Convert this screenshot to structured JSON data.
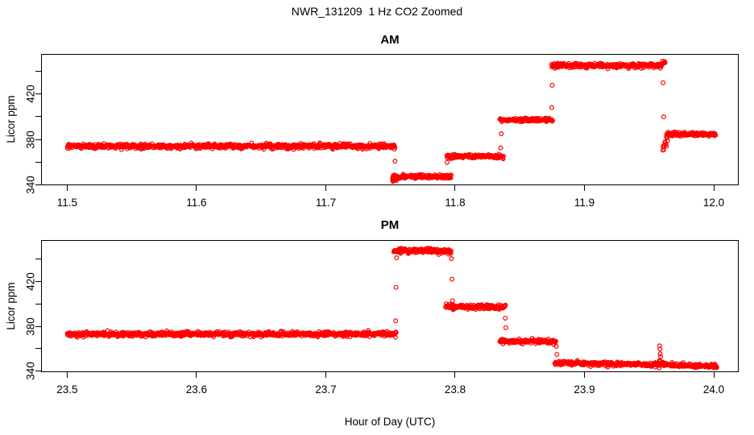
{
  "figure": {
    "title": "NWR_131209  1 Hz CO2 Zoomed",
    "xlabel": "Hour of Day (UTC)",
    "background": "#ffffff",
    "point_color": "#ff0000",
    "axis_color": "#000000",
    "marker": "open-circle"
  },
  "chart_data": [
    {
      "type": "scatter",
      "title": "AM",
      "ylabel": "Licor ppm",
      "sample_rate_hz": 1,
      "marker": "open-circle",
      "color": "#ff0000",
      "xlim": [
        11.4798,
        12.0193
      ],
      "ylim": [
        339.3,
        455.7
      ],
      "x_ticks": {
        "values": [
          11.5,
          11.6,
          11.7,
          11.8,
          11.9,
          12.0
        ],
        "labels": [
          "11.5",
          "11.6",
          "11.7",
          "11.8",
          "11.9",
          "12.0"
        ]
      },
      "y_ticks": {
        "values": [
          340,
          360,
          380,
          400,
          420,
          440
        ],
        "labels": [
          "340",
          "",
          "380",
          "",
          "420",
          ""
        ]
      },
      "segments": [
        {
          "t": [
            11.5,
            11.7535
          ],
          "v": [
            374.0,
            374.0
          ],
          "sd": 1.0
        },
        {
          "t": [
            11.7515,
            11.7555
          ],
          "v": [
            343.5,
            345.5
          ],
          "sd": 1.2
        },
        {
          "t": [
            11.7515,
            11.797
          ],
          "v": [
            347.0,
            347.0
          ],
          "sd": 0.9
        },
        {
          "t": [
            11.7935,
            11.8375
          ],
          "v": [
            365.0,
            365.0
          ],
          "sd": 0.9
        },
        {
          "t": [
            11.8345,
            11.8755
          ],
          "v": [
            397.3,
            397.3
          ],
          "sd": 0.9
        },
        {
          "t": [
            11.8745,
            11.9595
          ],
          "v": [
            445.5,
            445.5
          ],
          "sd": 1.0
        },
        {
          "t": [
            11.959,
            11.9625
          ],
          "v": [
            446.5,
            449.0
          ],
          "sd": 0.9
        },
        {
          "t": [
            11.9605,
            11.9645
          ],
          "v": [
            372.0,
            381.0
          ],
          "sd": 2.4
        },
        {
          "t": [
            11.9635,
            12.0015
          ],
          "v": [
            384.5,
            384.5
          ],
          "sd": 0.9
        }
      ],
      "outlier_points": [
        [
          11.753,
          371.4
        ],
        [
          11.7535,
          360.7
        ],
        [
          11.7938,
          359.5
        ],
        [
          11.8352,
          372.4
        ],
        [
          11.8357,
          385.0
        ],
        [
          11.8747,
          408.2
        ],
        [
          11.875,
          427.9
        ],
        [
          11.918,
          442.6
        ],
        [
          11.9608,
          430.2
        ],
        [
          11.9613,
          400.0
        ]
      ]
    },
    {
      "type": "scatter",
      "title": "PM",
      "ylabel": "Licor ppm",
      "sample_rate_hz": 1,
      "marker": "open-circle",
      "color": "#ff0000",
      "xlim": [
        23.4798,
        24.0193
      ],
      "ylim": [
        338.9,
        457.3
      ],
      "x_ticks": {
        "values": [
          23.5,
          23.6,
          23.7,
          23.8,
          23.9,
          24.0
        ],
        "labels": [
          "23.5",
          "23.6",
          "23.7",
          "23.8",
          "23.9",
          "24.0"
        ]
      },
      "y_ticks": {
        "values": [
          340,
          360,
          380,
          400,
          420,
          440
        ],
        "labels": [
          "340",
          "",
          "380",
          "",
          "420",
          ""
        ]
      },
      "segments": [
        {
          "t": [
            23.5,
            23.7545
          ],
          "v": [
            373.0,
            373.0
          ],
          "sd": 1.0
        },
        {
          "t": [
            23.7525,
            23.797
          ],
          "v": [
            447.5,
            447.5
          ],
          "sd": 1.1
        },
        {
          "t": [
            23.7925,
            23.839
          ],
          "v": [
            397.5,
            397.5
          ],
          "sd": 1.0
        },
        {
          "t": [
            23.8345,
            23.878
          ],
          "v": [
            366.5,
            366.5
          ],
          "sd": 0.9
        },
        {
          "t": [
            23.877,
            23.958
          ],
          "v": [
            347.0,
            346.0
          ],
          "sd": 0.9
        },
        {
          "t": [
            23.958,
            23.9605
          ],
          "v": [
            348.5,
            346.5
          ],
          "sd": 1.5
        },
        {
          "t": [
            23.96,
            24.0025
          ],
          "v": [
            345.5,
            344.3
          ],
          "sd": 0.9
        }
      ],
      "outlier_points": [
        [
          23.754,
          384.9
        ],
        [
          23.7543,
          414.9
        ],
        [
          23.7547,
          441.4
        ],
        [
          23.7972,
          440.7
        ],
        [
          23.7976,
          422.2
        ],
        [
          23.798,
          403.0
        ],
        [
          23.8388,
          387.3
        ],
        [
          23.8392,
          378.8
        ],
        [
          23.8783,
          362.0
        ],
        [
          23.8787,
          354.8
        ],
        [
          23.918,
          343.5
        ],
        [
          23.9578,
          342.7
        ],
        [
          23.9581,
          362.5
        ],
        [
          23.9584,
          359.6
        ],
        [
          23.9586,
          355.3
        ],
        [
          23.9589,
          353.0
        ]
      ]
    }
  ]
}
